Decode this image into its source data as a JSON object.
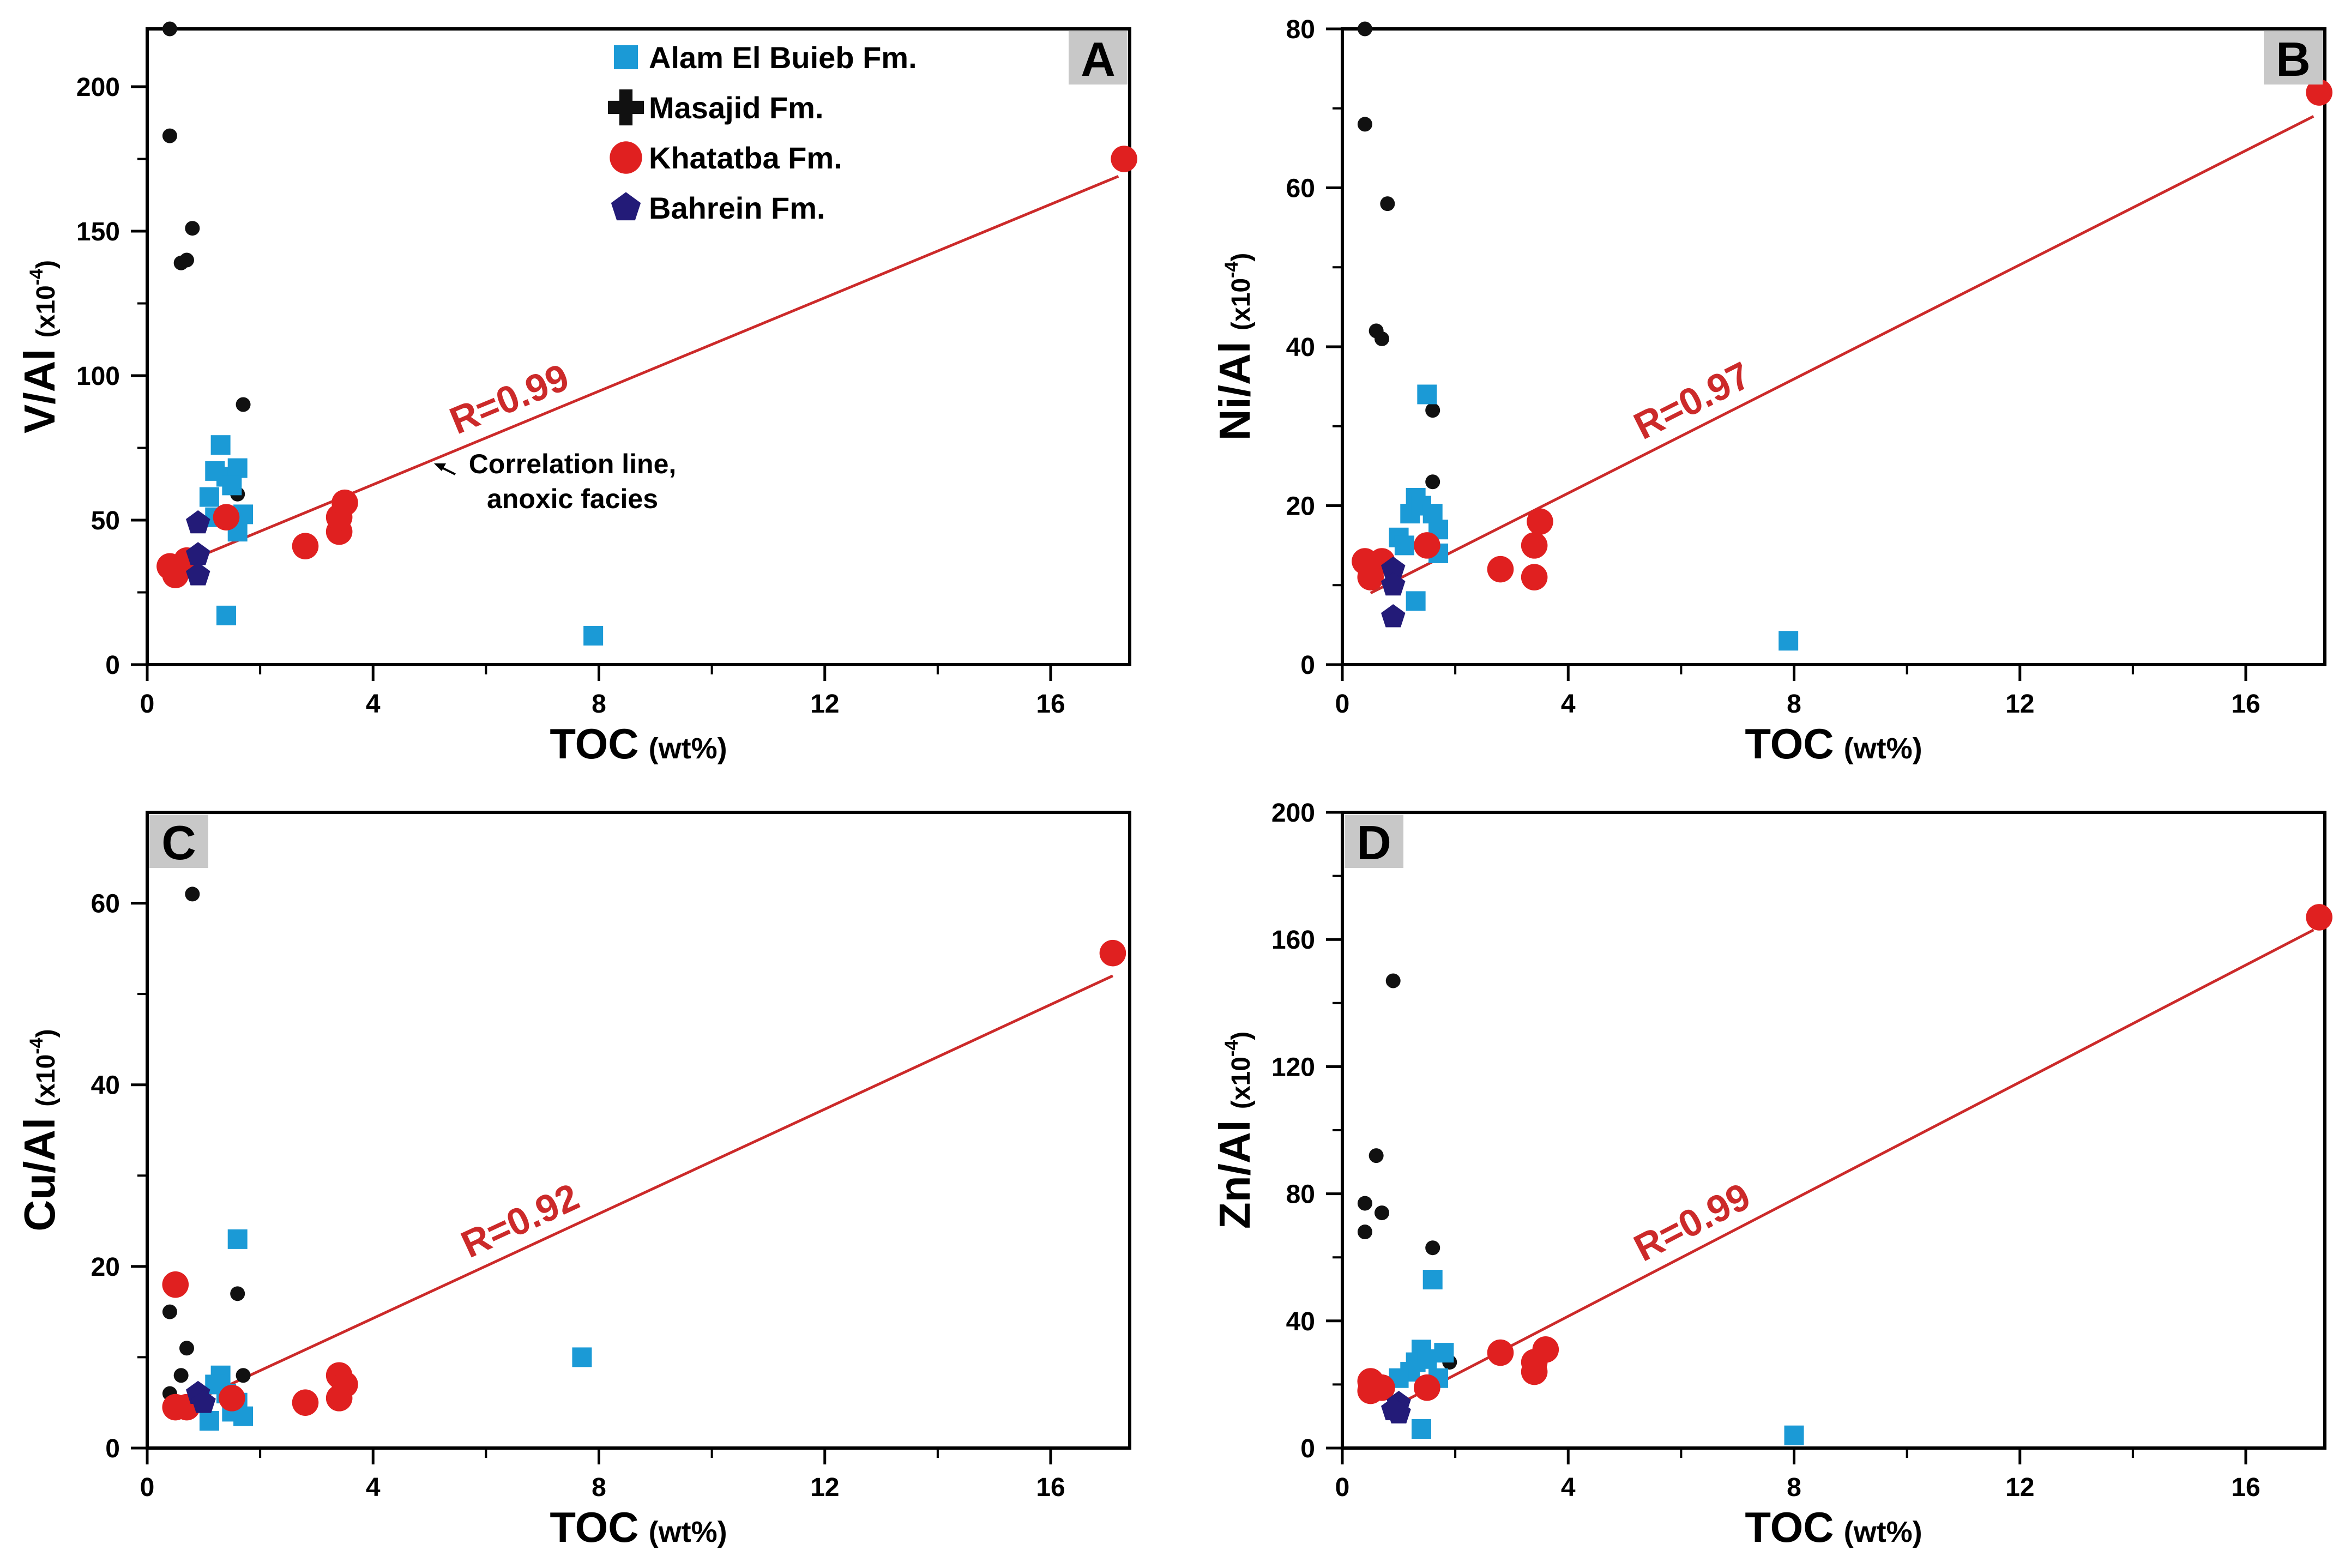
{
  "colors": {
    "alam_el_buieb": "#1b9ad6",
    "masajid": "#111111",
    "khatatba": "#e02020",
    "bahrein": "#231b78",
    "correlation_line": "#cc2a2a",
    "label_box": "#c8c8c8"
  },
  "legend": {
    "items": [
      {
        "label": "Alam El Buieb Fm.",
        "marker": "square",
        "color_key": "alam_el_buieb"
      },
      {
        "label": "Masajid Fm.",
        "marker": "cross",
        "color_key": "masajid"
      },
      {
        "label": "Khatatba Fm.",
        "marker": "circle",
        "color_key": "khatatba"
      },
      {
        "label": "Bahrein Fm.",
        "marker": "pentagon",
        "color_key": "bahrein"
      }
    ]
  },
  "annotation": {
    "line1": "Correlation line,",
    "line2": "anoxic facies"
  },
  "chart_data": [
    {
      "panel": "A",
      "type": "scatter",
      "xlabel": "TOC",
      "xunit": "(wt%)",
      "ylabel": "V/Al",
      "yunit_prefix": "(x10",
      "yunit_exp": "-4",
      "yunit_suffix": ")",
      "xlim": [
        0,
        17.4
      ],
      "ylim": [
        0,
        220
      ],
      "xticks": [
        0,
        4,
        8,
        12,
        16
      ],
      "yticks": [
        0,
        50,
        100,
        150,
        200
      ],
      "r_label": "R=0.99",
      "trendline": {
        "x1": 0.5,
        "y1": 34,
        "x2": 17.2,
        "y2": 169
      },
      "series": [
        {
          "name": "Masajid Fm.",
          "points": [
            [
              0.4,
              220
            ],
            [
              0.4,
              183
            ],
            [
              0.6,
              139
            ],
            [
              0.7,
              140
            ],
            [
              0.8,
              151
            ],
            [
              1.7,
              90
            ],
            [
              1.6,
              59
            ]
          ]
        },
        {
          "name": "Alam El Buieb Fm.",
          "points": [
            [
              1.3,
              76
            ],
            [
              1.2,
              67
            ],
            [
              1.4,
              65
            ],
            [
              1.6,
              68
            ],
            [
              1.5,
              62
            ],
            [
              1.1,
              58
            ],
            [
              1.7,
              52
            ],
            [
              1.6,
              46
            ],
            [
              1.4,
              17
            ],
            [
              7.9,
              10
            ],
            [
              1.2,
              51
            ]
          ]
        },
        {
          "name": "Khatatba Fm.",
          "points": [
            [
              0.4,
              34
            ],
            [
              0.5,
              31
            ],
            [
              0.7,
              36
            ],
            [
              2.8,
              41
            ],
            [
              3.4,
              46
            ],
            [
              3.4,
              51
            ],
            [
              3.5,
              56
            ],
            [
              1.4,
              51
            ],
            [
              17.3,
              175
            ]
          ]
        },
        {
          "name": "Bahrein Fm.",
          "points": [
            [
              0.9,
              49
            ],
            [
              0.9,
              38
            ],
            [
              0.9,
              31
            ]
          ]
        }
      ]
    },
    {
      "panel": "B",
      "type": "scatter",
      "xlabel": "TOC",
      "xunit": "(wt%)",
      "ylabel": "Ni/Al",
      "yunit_prefix": "(x10",
      "yunit_exp": "-4",
      "yunit_suffix": ")",
      "xlim": [
        0,
        17.4
      ],
      "ylim": [
        0,
        80
      ],
      "xticks": [
        0,
        4,
        8,
        12,
        16
      ],
      "yticks": [
        0,
        20,
        40,
        60,
        80
      ],
      "r_label": "R=0.97",
      "trendline": {
        "x1": 0.5,
        "y1": 9,
        "x2": 17.2,
        "y2": 69
      },
      "series": [
        {
          "name": "Masajid Fm.",
          "points": [
            [
              0.4,
              80
            ],
            [
              0.4,
              68
            ],
            [
              0.8,
              58
            ],
            [
              0.6,
              42
            ],
            [
              0.7,
              41
            ],
            [
              1.6,
              32
            ],
            [
              1.6,
              23
            ]
          ]
        },
        {
          "name": "Alam El Buieb Fm.",
          "points": [
            [
              1.5,
              34
            ],
            [
              1.3,
              21
            ],
            [
              1.2,
              19
            ],
            [
              1.4,
              20
            ],
            [
              1.6,
              19
            ],
            [
              1.7,
              17
            ],
            [
              1.0,
              16
            ],
            [
              1.1,
              15
            ],
            [
              1.7,
              14
            ],
            [
              1.3,
              8
            ],
            [
              7.9,
              3
            ]
          ]
        },
        {
          "name": "Khatatba Fm.",
          "points": [
            [
              0.4,
              13
            ],
            [
              0.5,
              11
            ],
            [
              0.7,
              13
            ],
            [
              1.5,
              15
            ],
            [
              2.8,
              12
            ],
            [
              3.4,
              11
            ],
            [
              3.4,
              15
            ],
            [
              3.5,
              18
            ],
            [
              17.3,
              72
            ]
          ]
        },
        {
          "name": "Bahrein Fm.",
          "points": [
            [
              0.9,
              12
            ],
            [
              0.9,
              10
            ],
            [
              0.9,
              6
            ]
          ]
        }
      ]
    },
    {
      "panel": "C",
      "type": "scatter",
      "xlabel": "TOC",
      "xunit": "(wt%)",
      "ylabel": "Cu/Al",
      "yunit_prefix": "(x10",
      "yunit_exp": "-4",
      "yunit_suffix": ")",
      "xlim": [
        0,
        17.4
      ],
      "ylim": [
        0,
        70
      ],
      "xticks": [
        0,
        4,
        8,
        12,
        16
      ],
      "yticks": [
        0,
        20,
        40,
        60
      ],
      "r_label": "R=0.92",
      "trendline": {
        "x1": 0.6,
        "y1": 4.5,
        "x2": 17.1,
        "y2": 52
      },
      "series": [
        {
          "name": "Masajid Fm.",
          "points": [
            [
              0.8,
              61
            ],
            [
              0.4,
              15
            ],
            [
              0.7,
              11
            ],
            [
              1.6,
              17
            ],
            [
              0.6,
              8
            ],
            [
              0.4,
              6
            ],
            [
              1.7,
              8
            ]
          ]
        },
        {
          "name": "Alam El Buieb Fm.",
          "points": [
            [
              1.6,
              23
            ],
            [
              1.3,
              8
            ],
            [
              1.2,
              7
            ],
            [
              1.4,
              6
            ],
            [
              1.6,
              5
            ],
            [
              1.5,
              4
            ],
            [
              1.1,
              3
            ],
            [
              1.7,
              3.5
            ],
            [
              7.7,
              10
            ]
          ]
        },
        {
          "name": "Khatatba Fm.",
          "points": [
            [
              0.5,
              18
            ],
            [
              0.5,
              4.5
            ],
            [
              0.7,
              4.5
            ],
            [
              1.5,
              5.5
            ],
            [
              2.8,
              5
            ],
            [
              3.4,
              8
            ],
            [
              3.5,
              7
            ],
            [
              3.4,
              5.5
            ],
            [
              17.1,
              54.5
            ]
          ]
        },
        {
          "name": "Bahrein Fm.",
          "points": [
            [
              0.9,
              6
            ],
            [
              1.0,
              5
            ]
          ]
        }
      ]
    },
    {
      "panel": "D",
      "type": "scatter",
      "xlabel": "TOC",
      "xunit": "(wt%)",
      "ylabel": "Zn/Al",
      "yunit_prefix": "(x10",
      "yunit_exp": "-4",
      "yunit_suffix": ")",
      "xlim": [
        0,
        17.4
      ],
      "ylim": [
        0,
        200
      ],
      "xticks": [
        0,
        4,
        8,
        12,
        16
      ],
      "yticks": [
        0,
        40,
        80,
        120,
        160,
        200
      ],
      "r_label": "R=0.99",
      "trendline": {
        "x1": 0.8,
        "y1": 12,
        "x2": 17.2,
        "y2": 163
      },
      "series": [
        {
          "name": "Masajid Fm.",
          "points": [
            [
              0.9,
              147
            ],
            [
              0.6,
              92
            ],
            [
              0.4,
              77
            ],
            [
              0.7,
              74
            ],
            [
              0.4,
              68
            ],
            [
              1.6,
              63
            ],
            [
              1.9,
              27
            ]
          ]
        },
        {
          "name": "Alam El Buieb Fm.",
          "points": [
            [
              1.6,
              53
            ],
            [
              1.4,
              31
            ],
            [
              1.8,
              30
            ],
            [
              1.3,
              27
            ],
            [
              1.5,
              28
            ],
            [
              1.2,
              24
            ],
            [
              1.0,
              22
            ],
            [
              1.7,
              22
            ],
            [
              1.4,
              6
            ],
            [
              8.0,
              4
            ]
          ]
        },
        {
          "name": "Khatatba Fm.",
          "points": [
            [
              0.5,
              21
            ],
            [
              0.5,
              18
            ],
            [
              0.7,
              19
            ],
            [
              1.5,
              19
            ],
            [
              2.8,
              30
            ],
            [
              3.4,
              27
            ],
            [
              3.4,
              24
            ],
            [
              3.6,
              31
            ],
            [
              17.3,
              167
            ]
          ]
        },
        {
          "name": "Bahrein Fm.",
          "points": [
            [
              1.0,
              14
            ],
            [
              1.0,
              11
            ],
            [
              0.9,
              12
            ]
          ]
        }
      ]
    }
  ]
}
